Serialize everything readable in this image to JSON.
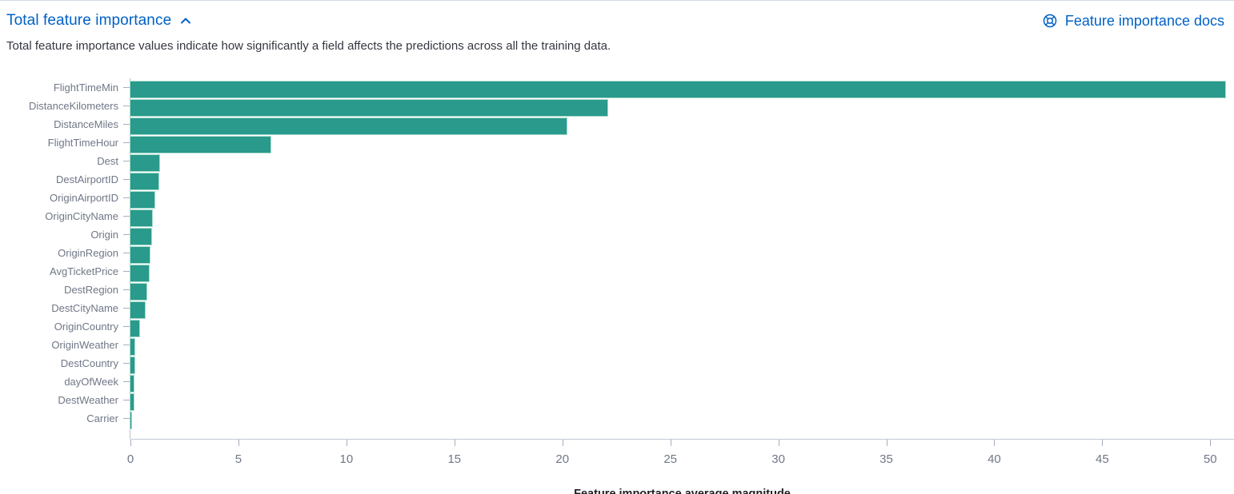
{
  "header": {
    "title": "Total feature importance",
    "collapse_icon": "chevron-up-icon",
    "docs_link_label": "Feature importance docs",
    "docs_link_icon": "help-life-ring-icon"
  },
  "subtitle": "Total feature importance values indicate how significantly a field affects the predictions across all the training data.",
  "colors": {
    "link_blue": "#0061c6",
    "bar_teal": "#299a8b",
    "bar_edge": "#aadbce",
    "axis_text": "#6f7787",
    "body_text": "#343741",
    "axis_line": "#c3cad6",
    "top_divider": "#d3dae6"
  },
  "chart_data": {
    "type": "bar",
    "orientation": "horizontal",
    "title": "",
    "xlabel": "Feature importance average magnitude",
    "ylabel": "",
    "xlim": [
      0,
      51.1
    ],
    "x_ticks": [
      0,
      5,
      10,
      15,
      20,
      25,
      30,
      35,
      40,
      45,
      50
    ],
    "grid": false,
    "legend": "none",
    "categories": [
      "FlightTimeMin",
      "DistanceKilometers",
      "DistanceMiles",
      "FlightTimeHour",
      "Dest",
      "DestAirportID",
      "OriginAirportID",
      "OriginCityName",
      "Origin",
      "OriginRegion",
      "AvgTicketPrice",
      "DestRegion",
      "DestCityName",
      "OriginCountry",
      "OriginWeather",
      "DestCountry",
      "dayOfWeek",
      "DestWeather",
      "Carrier"
    ],
    "values": [
      50.7,
      22.1,
      20.2,
      6.5,
      1.35,
      1.3,
      1.1,
      1.0,
      0.97,
      0.9,
      0.84,
      0.74,
      0.65,
      0.41,
      0.18,
      0.17,
      0.16,
      0.15,
      0.03
    ]
  }
}
